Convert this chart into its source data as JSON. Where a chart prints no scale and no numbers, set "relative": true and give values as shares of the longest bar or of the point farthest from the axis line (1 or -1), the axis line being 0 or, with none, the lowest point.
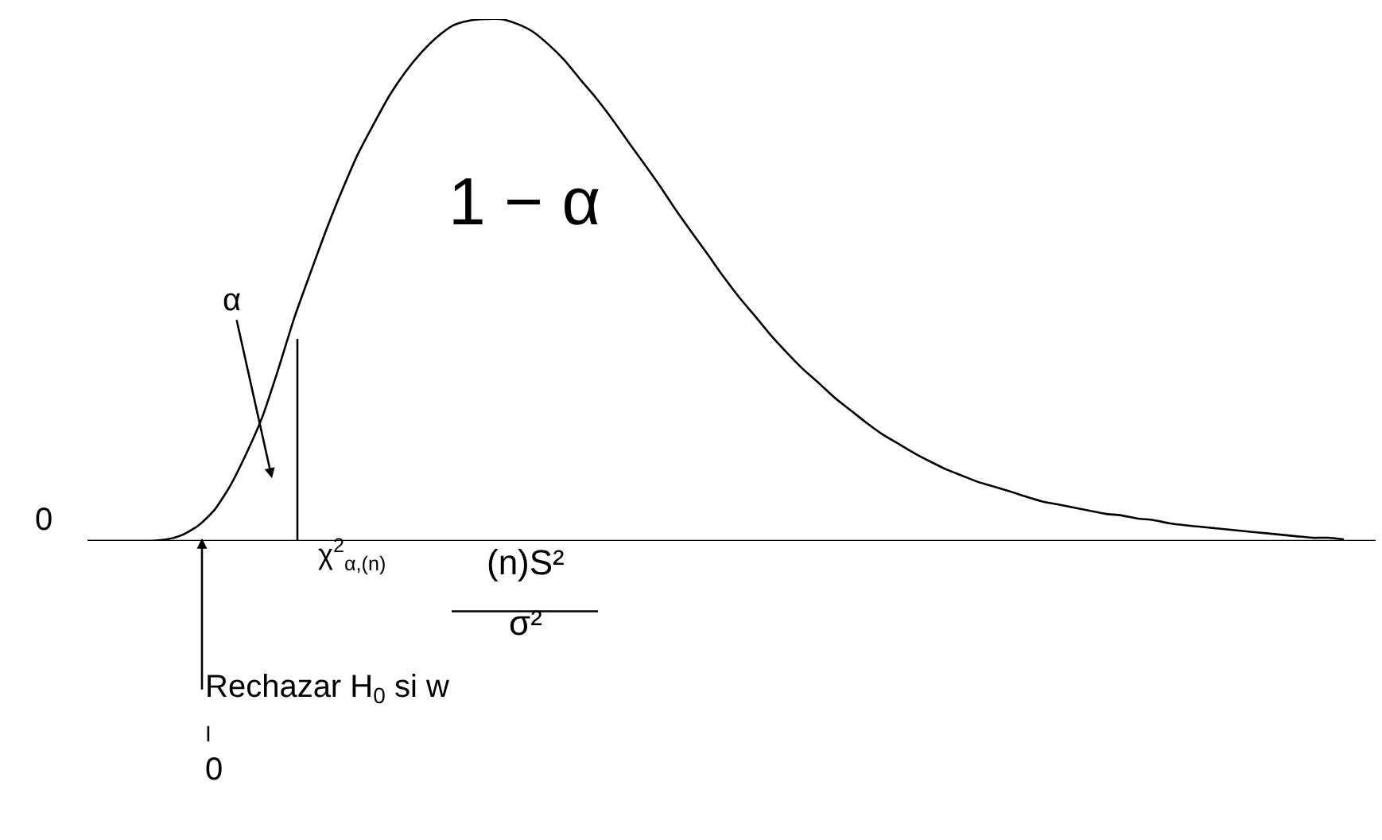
{
  "chart_data": {
    "type": "line",
    "relative": true,
    "color": "#000000",
    "marker": "none",
    "line_style": "solid",
    "categories": [
      null,
      null,
      null,
      null,
      null,
      null,
      null,
      null,
      null,
      null,
      null,
      null,
      null,
      null,
      null,
      null,
      null,
      null,
      null,
      null,
      null,
      null,
      null,
      null,
      null,
      null,
      null,
      null,
      null,
      null,
      null,
      null,
      null,
      null,
      null,
      null,
      null,
      null,
      null,
      null,
      null,
      null,
      null,
      null,
      null,
      null,
      null,
      null,
      null,
      null,
      null,
      null,
      null,
      null,
      null,
      null,
      null,
      null,
      null,
      null,
      null,
      null,
      null,
      null,
      null,
      null,
      null,
      null,
      null,
      null,
      null,
      null,
      null,
      null,
      null,
      null,
      null,
      null,
      null,
      null,
      null,
      null
    ],
    "values": [
      0,
      0,
      0,
      0,
      0,
      0.003,
      0.012,
      0.03,
      0.06,
      0.107,
      0.168,
      0.238,
      0.329,
      0.427,
      0.512,
      0.595,
      0.671,
      0.741,
      0.799,
      0.854,
      0.899,
      0.936,
      0.966,
      0.988,
      0.997,
      1,
      1,
      0.991,
      0.976,
      0.951,
      0.921,
      0.884,
      0.848,
      0.808,
      0.765,
      0.723,
      0.68,
      0.634,
      0.591,
      0.549,
      0.506,
      0.466,
      0.43,
      0.393,
      0.36,
      0.329,
      0.302,
      0.274,
      0.25,
      0.226,
      0.204,
      0.186,
      0.168,
      0.152,
      0.137,
      0.125,
      0.113,
      0.104,
      0.095,
      0.085,
      0.076,
      0.07,
      0.064,
      0.058,
      0.052,
      0.049,
      0.043,
      0.04,
      0.034,
      0.03,
      0.027,
      0.024,
      0.021,
      0.018,
      0.015,
      0.012,
      0.009,
      0.006,
      0.006,
      0.003,
      null,
      null
    ],
    "annotations": [
      "1 − α",
      "α",
      "0",
      "χ$^{2}$$_{α,(n)}$",
      "(n)S²",
      "σ²",
      "Rechazar H$_{0}$ si w",
      "I",
      "0"
    ]
  }
}
